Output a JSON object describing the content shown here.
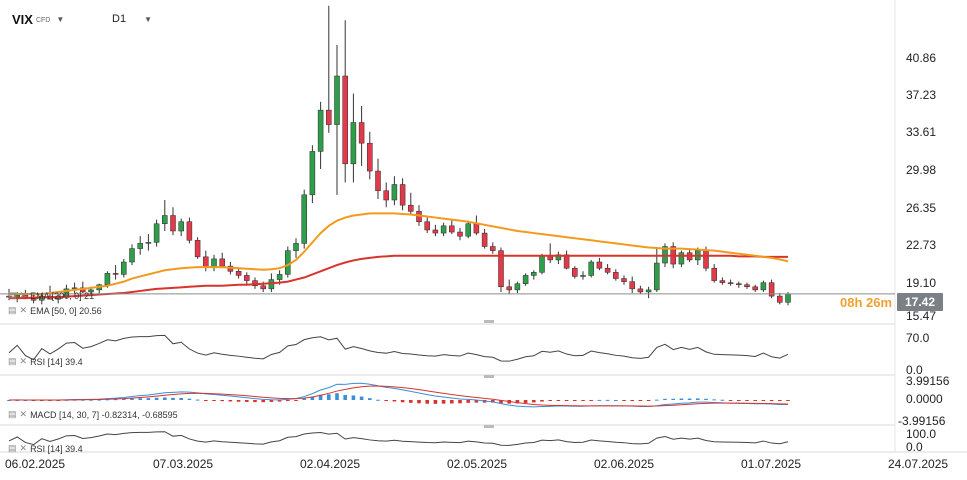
{
  "header": {
    "symbol": "VIX",
    "instrument_type": "CFD",
    "timeframe": "D1"
  },
  "price_axis": [
    "40.86",
    "37.23",
    "33.61",
    "29.98",
    "26.35",
    "22.73",
    "19.10",
    "15.47"
  ],
  "last_price": "17.42",
  "countdown": "08h 26m",
  "indicators": {
    "ema200": "EMA [200, 0] 21",
    "ema50": "EMA [50, 0] 20.56",
    "rsi1": "RSI [14] 39.4",
    "macd": "MACD [14, 30, 7] -0.82314, -0.68595",
    "rsi2": "RSI [14] 39.4"
  },
  "rsi_axis": [
    "70.0",
    "0.0"
  ],
  "macd_axis": [
    "3.99156",
    "0.0000",
    "-3.99156"
  ],
  "rsi2_axis": [
    "100.0",
    "0.0"
  ],
  "date_axis": [
    "06.02.2025",
    "07.03.2025",
    "02.04.2025",
    "02.05.2025",
    "02.06.2025",
    "01.07.2025",
    "24.07.2025"
  ],
  "colors": {
    "up": "#2e9e4a",
    "down": "#e23a4a",
    "ema50": "#f39a1e",
    "ema200": "#d8342c",
    "macd_line": "#3a8fd8",
    "signal_line": "#d8342c",
    "rsi": "#444444"
  },
  "chart_data": {
    "type": "candlestick",
    "title": "VIX",
    "y_range": [
      14.5,
      44.5
    ],
    "candles_ohlc": [
      [
        17.2,
        17.9,
        16.8,
        17.1
      ],
      [
        17.1,
        17.6,
        16.6,
        17.3
      ],
      [
        17.3,
        17.8,
        16.9,
        17.0
      ],
      [
        17.0,
        17.4,
        16.5,
        16.8
      ],
      [
        16.8,
        17.5,
        16.4,
        17.2
      ],
      [
        17.2,
        18.2,
        16.9,
        16.9
      ],
      [
        16.9,
        17.3,
        16.5,
        17.2
      ],
      [
        17.2,
        18.3,
        17.0,
        17.9
      ],
      [
        17.9,
        18.5,
        17.4,
        18.0
      ],
      [
        18.0,
        18.6,
        17.5,
        17.6
      ],
      [
        17.6,
        18.1,
        17.2,
        17.8
      ],
      [
        17.8,
        18.4,
        17.3,
        18.3
      ],
      [
        18.3,
        19.6,
        18.0,
        19.4
      ],
      [
        19.4,
        20.2,
        18.8,
        19.3
      ],
      [
        19.3,
        20.8,
        19.0,
        20.5
      ],
      [
        20.5,
        22.2,
        20.2,
        21.8
      ],
      [
        21.8,
        23.0,
        21.2,
        22.3
      ],
      [
        22.3,
        23.2,
        21.6,
        22.4
      ],
      [
        22.4,
        24.6,
        22.0,
        24.2
      ],
      [
        24.2,
        26.5,
        23.5,
        25.0
      ],
      [
        25.0,
        25.8,
        23.1,
        23.5
      ],
      [
        23.5,
        24.7,
        23.0,
        24.4
      ],
      [
        24.4,
        24.8,
        22.3,
        22.6
      ],
      [
        22.6,
        22.9,
        20.8,
        21.0
      ],
      [
        21.0,
        21.6,
        19.6,
        20.0
      ],
      [
        20.0,
        21.2,
        19.6,
        20.8
      ],
      [
        20.8,
        21.4,
        19.9,
        20.1
      ],
      [
        20.1,
        20.5,
        19.3,
        19.6
      ],
      [
        19.6,
        19.9,
        18.9,
        19.2
      ],
      [
        19.2,
        19.5,
        18.3,
        18.7
      ],
      [
        18.7,
        19.0,
        17.9,
        18.2
      ],
      [
        18.2,
        18.6,
        17.6,
        17.9
      ],
      [
        17.9,
        19.4,
        17.6,
        18.8
      ],
      [
        18.8,
        19.7,
        18.3,
        19.3
      ],
      [
        19.3,
        22.0,
        19.0,
        21.6
      ],
      [
        21.6,
        22.8,
        20.9,
        22.3
      ],
      [
        22.3,
        27.5,
        21.8,
        27.0
      ],
      [
        27.0,
        31.8,
        26.2,
        31.2
      ],
      [
        31.2,
        36.0,
        29.5,
        35.2
      ],
      [
        35.2,
        45.3,
        33.0,
        33.8
      ],
      [
        33.8,
        41.5,
        27.0,
        38.5
      ],
      [
        38.5,
        43.9,
        28.2,
        30.0
      ],
      [
        30.0,
        36.8,
        28.2,
        34.0
      ],
      [
        34.0,
        35.6,
        29.8,
        32.0
      ],
      [
        32.0,
        33.1,
        28.5,
        29.3
      ],
      [
        29.3,
        30.5,
        26.6,
        27.4
      ],
      [
        27.4,
        28.2,
        25.8,
        26.5
      ],
      [
        26.5,
        28.8,
        26.0,
        28.0
      ],
      [
        28.0,
        28.6,
        25.5,
        26.0
      ],
      [
        26.0,
        27.2,
        25.0,
        25.4
      ],
      [
        25.4,
        26.0,
        24.0,
        24.4
      ],
      [
        24.4,
        24.8,
        23.3,
        23.6
      ],
      [
        23.6,
        24.1,
        23.0,
        23.3
      ],
      [
        23.3,
        24.3,
        23.0,
        24.0
      ],
      [
        24.0,
        24.6,
        23.2,
        23.4
      ],
      [
        23.4,
        23.8,
        22.6,
        23.0
      ],
      [
        23.0,
        24.5,
        22.8,
        24.2
      ],
      [
        24.2,
        25.0,
        23.1,
        23.3
      ],
      [
        23.3,
        23.7,
        21.8,
        22.0
      ],
      [
        22.0,
        22.4,
        21.3,
        21.6
      ],
      [
        21.6,
        21.9,
        17.6,
        18.1
      ],
      [
        18.1,
        18.8,
        17.4,
        17.8
      ],
      [
        17.8,
        18.6,
        17.5,
        18.4
      ],
      [
        18.4,
        19.4,
        18.2,
        19.2
      ],
      [
        19.2,
        19.7,
        18.8,
        19.5
      ],
      [
        19.5,
        21.3,
        19.3,
        21.1
      ],
      [
        21.1,
        22.3,
        20.4,
        20.7
      ],
      [
        20.7,
        21.5,
        20.3,
        21.2
      ],
      [
        21.2,
        21.6,
        19.8,
        19.9
      ],
      [
        19.9,
        20.1,
        18.9,
        19.1
      ],
      [
        19.1,
        19.6,
        18.8,
        19.2
      ],
      [
        19.2,
        20.7,
        19.0,
        20.5
      ],
      [
        20.5,
        20.9,
        19.7,
        19.9
      ],
      [
        19.9,
        20.3,
        19.3,
        19.5
      ],
      [
        19.5,
        19.8,
        18.7,
        18.9
      ],
      [
        18.9,
        19.2,
        18.3,
        18.6
      ],
      [
        18.6,
        19.1,
        17.5,
        17.9
      ],
      [
        17.9,
        18.2,
        17.4,
        17.6
      ],
      [
        17.6,
        18.1,
        17.0,
        17.8
      ],
      [
        17.8,
        21.9,
        17.6,
        20.4
      ],
      [
        20.4,
        22.3,
        20.0,
        22.0
      ],
      [
        22.0,
        22.4,
        19.9,
        20.3
      ],
      [
        20.3,
        21.6,
        20.0,
        21.4
      ],
      [
        21.4,
        21.8,
        20.5,
        20.7
      ],
      [
        20.7,
        21.9,
        20.2,
        21.6
      ],
      [
        21.6,
        22.0,
        19.6,
        19.9
      ],
      [
        19.9,
        20.3,
        18.5,
        18.7
      ],
      [
        18.7,
        19.0,
        18.3,
        18.5
      ],
      [
        18.5,
        18.8,
        18.2,
        18.4
      ],
      [
        18.4,
        18.6,
        18.0,
        18.3
      ],
      [
        18.3,
        18.5,
        17.9,
        18.1
      ],
      [
        18.1,
        18.3,
        17.6,
        17.8
      ],
      [
        17.8,
        18.7,
        17.6,
        18.5
      ],
      [
        18.5,
        18.8,
        17.0,
        17.2
      ],
      [
        17.2,
        17.5,
        16.4,
        16.6
      ],
      [
        16.6,
        17.6,
        16.3,
        17.42
      ]
    ],
    "ema50": [
      17.4,
      17.4,
      17.4,
      17.4,
      17.4,
      17.5,
      17.6,
      17.7,
      17.8,
      17.9,
      18.0,
      18.1,
      18.2,
      18.4,
      18.6,
      18.9,
      19.1,
      19.3,
      19.5,
      19.7,
      19.8,
      19.9,
      19.95,
      20.0,
      20.0,
      20.0,
      20.0,
      19.95,
      19.9,
      19.85,
      19.8,
      19.75,
      19.8,
      19.9,
      20.2,
      20.7,
      21.5,
      22.4,
      23.3,
      24.0,
      24.5,
      24.8,
      25.0,
      25.1,
      25.2,
      25.2,
      25.2,
      25.2,
      25.15,
      25.1,
      25.0,
      24.9,
      24.8,
      24.7,
      24.6,
      24.5,
      24.4,
      24.25,
      24.1,
      23.95,
      23.8,
      23.65,
      23.5,
      23.4,
      23.3,
      23.2,
      23.1,
      23.0,
      22.9,
      22.8,
      22.7,
      22.6,
      22.5,
      22.4,
      22.3,
      22.2,
      22.1,
      22.0,
      21.9,
      21.85,
      21.8,
      21.8,
      21.8,
      21.75,
      21.7,
      21.65,
      21.6,
      21.5,
      21.4,
      21.3,
      21.2,
      21.1,
      21.0,
      20.9,
      20.75,
      20.56
    ],
    "ema200": [
      17.0,
      17.0,
      17.0,
      17.05,
      17.05,
      17.1,
      17.1,
      17.15,
      17.2,
      17.25,
      17.3,
      17.35,
      17.4,
      17.45,
      17.5,
      17.6,
      17.7,
      17.8,
      17.9,
      17.95,
      18.0,
      18.05,
      18.1,
      18.15,
      18.2,
      18.2,
      18.2,
      18.25,
      18.3,
      18.3,
      18.35,
      18.4,
      18.45,
      18.5,
      18.6,
      18.8,
      19.0,
      19.3,
      19.6,
      19.9,
      20.2,
      20.45,
      20.65,
      20.8,
      20.9,
      21.0,
      21.05,
      21.1,
      21.1,
      21.1,
      21.1,
      21.1,
      21.1,
      21.1,
      21.1,
      21.1,
      21.1,
      21.1,
      21.1,
      21.1,
      21.1,
      21.1,
      21.1,
      21.1,
      21.1,
      21.1,
      21.1,
      21.1,
      21.1,
      21.1,
      21.1,
      21.1,
      21.1,
      21.1,
      21.1,
      21.1,
      21.1,
      21.1,
      21.1,
      21.1,
      21.1,
      21.1,
      21.1,
      21.1,
      21.1,
      21.1,
      21.1,
      21.1,
      21.1,
      21.05,
      21.05,
      21.05,
      21.0,
      21.0,
      21.0,
      21.0
    ]
  }
}
